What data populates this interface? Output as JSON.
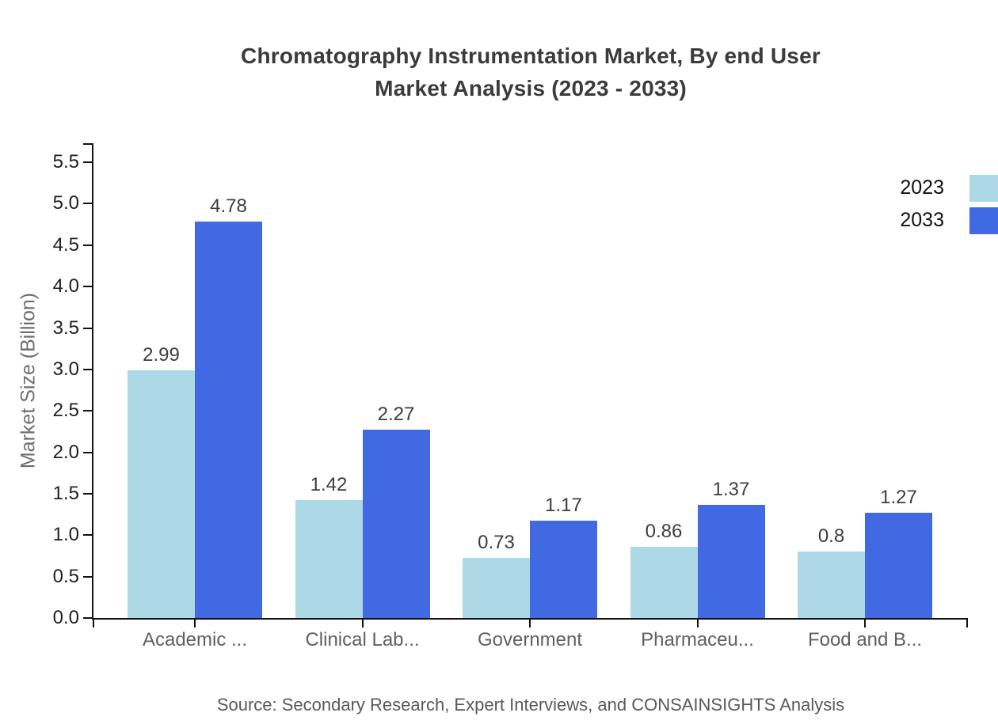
{
  "title": {
    "line1": "Chromatography Instrumentation Market, By end User",
    "line2": "Market Analysis (2023 - 2033)"
  },
  "source_text": "Source: Secondary Research, Expert Interviews, and CONSAINSIGHTS Analysis",
  "colors": {
    "series_2023": "#ADD8E6",
    "series_2033": "#4169E1",
    "axis": "#111111",
    "title_text": "#3b3b3b",
    "value_label_text": "#3d3d3d",
    "category_text": "#606060",
    "y_axis_title_text": "#6e6e6e",
    "source_text": "#595959"
  },
  "legend": {
    "items": [
      {
        "label": "2023",
        "color": "#ADD8E6"
      },
      {
        "label": "2033",
        "color": "#4169E1"
      }
    ]
  },
  "chart_data": {
    "type": "bar",
    "title": "Chromatography Instrumentation Market, By end User Market Analysis (2023 - 2033)",
    "categories": [
      "Academic ...",
      "Clinical Lab...",
      "Government",
      "Pharmaceu...",
      "Food and B..."
    ],
    "series": [
      {
        "name": "2023",
        "color": "#ADD8E6",
        "values": [
          2.99,
          1.42,
          0.73,
          0.86,
          0.8
        ],
        "labels": [
          "2.99",
          "1.42",
          "0.73",
          "0.86",
          "0.8"
        ]
      },
      {
        "name": "2033",
        "color": "#4169E1",
        "values": [
          4.78,
          2.27,
          1.17,
          1.37,
          1.27
        ],
        "labels": [
          "4.78",
          "2.27",
          "1.17",
          "1.37",
          "1.27"
        ]
      }
    ],
    "xlabel": "",
    "ylabel": "Market Size (Billion)",
    "ylim": [
      0,
      5.73
    ],
    "yticks": [
      0.0,
      0.5,
      1.0,
      1.5,
      2.0,
      2.5,
      3.0,
      3.5,
      4.0,
      4.5,
      5.0,
      5.5
    ],
    "ytick_labels": [
      "0.0",
      "0.5",
      "1.0",
      "1.5",
      "2.0",
      "2.5",
      "3.0",
      "3.5",
      "4.0",
      "4.5",
      "5.0",
      "5.5"
    ],
    "grid": false,
    "legend_position": "top-right",
    "bar_value_labels_shown": true
  }
}
